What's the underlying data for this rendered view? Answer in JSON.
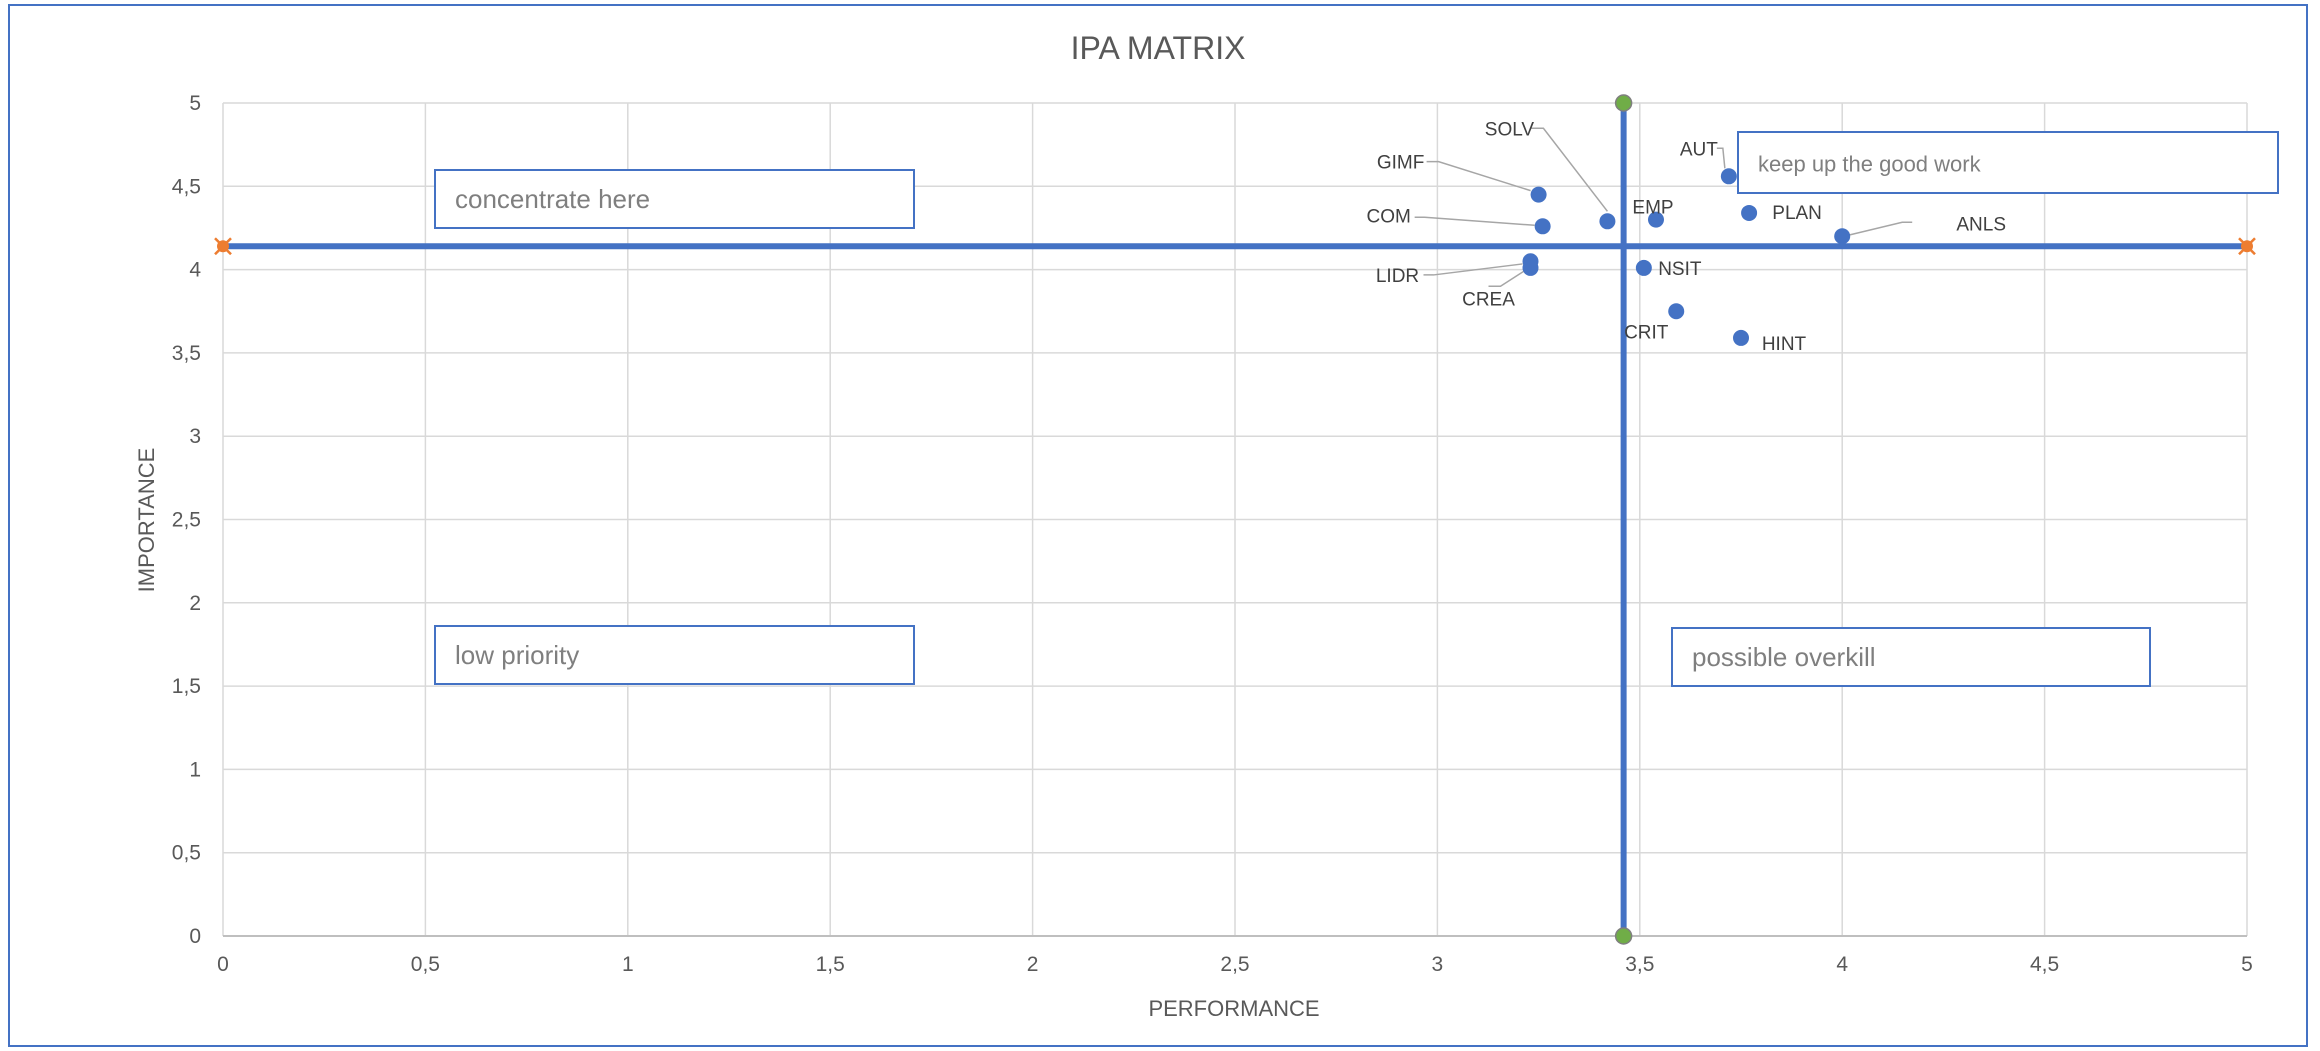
{
  "chart_data": {
    "type": "scatter",
    "title": "IPA MATRIX",
    "xlabel": "PERFORMANCE",
    "ylabel": "IMPORTANCE",
    "xlim": [
      0,
      5
    ],
    "ylim": [
      0,
      5
    ],
    "x_ticks": [
      "0",
      "0,5",
      "1",
      "1,5",
      "2",
      "2,5",
      "3",
      "3,5",
      "4",
      "4,5",
      "5"
    ],
    "y_ticks": [
      "0",
      "0,5",
      "1",
      "1,5",
      "2",
      "2,5",
      "3",
      "3,5",
      "4",
      "4,5",
      "5"
    ],
    "grid": true,
    "points": [
      {
        "label": "SOLV",
        "x": 3.42,
        "y": 4.29
      },
      {
        "label": "GIMF",
        "x": 3.25,
        "y": 4.45
      },
      {
        "label": "COM",
        "x": 3.26,
        "y": 4.26
      },
      {
        "label": "LIDR",
        "x": 3.23,
        "y": 4.01
      },
      {
        "label": "CREA",
        "x": 3.23,
        "y": 4.05
      },
      {
        "label": "AUT",
        "x": 3.72,
        "y": 4.56
      },
      {
        "label": "EMP",
        "x": 3.54,
        "y": 4.3
      },
      {
        "label": "PLAN",
        "x": 3.77,
        "y": 4.34
      },
      {
        "label": "ANLS",
        "x": 4.0,
        "y": 4.2
      },
      {
        "label": "NSIT",
        "x": 3.51,
        "y": 4.01
      },
      {
        "label": "CRIT",
        "x": 3.59,
        "y": 3.75
      },
      {
        "label": "HINT",
        "x": 3.75,
        "y": 3.59
      }
    ],
    "reference_lines": {
      "horizontal_y": 4.14,
      "vertical_x": 3.46,
      "color": "#4472c4"
    },
    "colors": {
      "points": "#4472c4",
      "horizontal_end_markers": "#ed7d31",
      "vertical_end_markers": "#70ad47",
      "grid": "#d9d9d9",
      "text": "#595959",
      "frame": "#4472c4"
    },
    "quadrant_labels": {
      "top_left": "concentrate here",
      "top_right": "keep up the good work",
      "bottom_left": "low priority",
      "bottom_right": "possible overkill"
    }
  }
}
